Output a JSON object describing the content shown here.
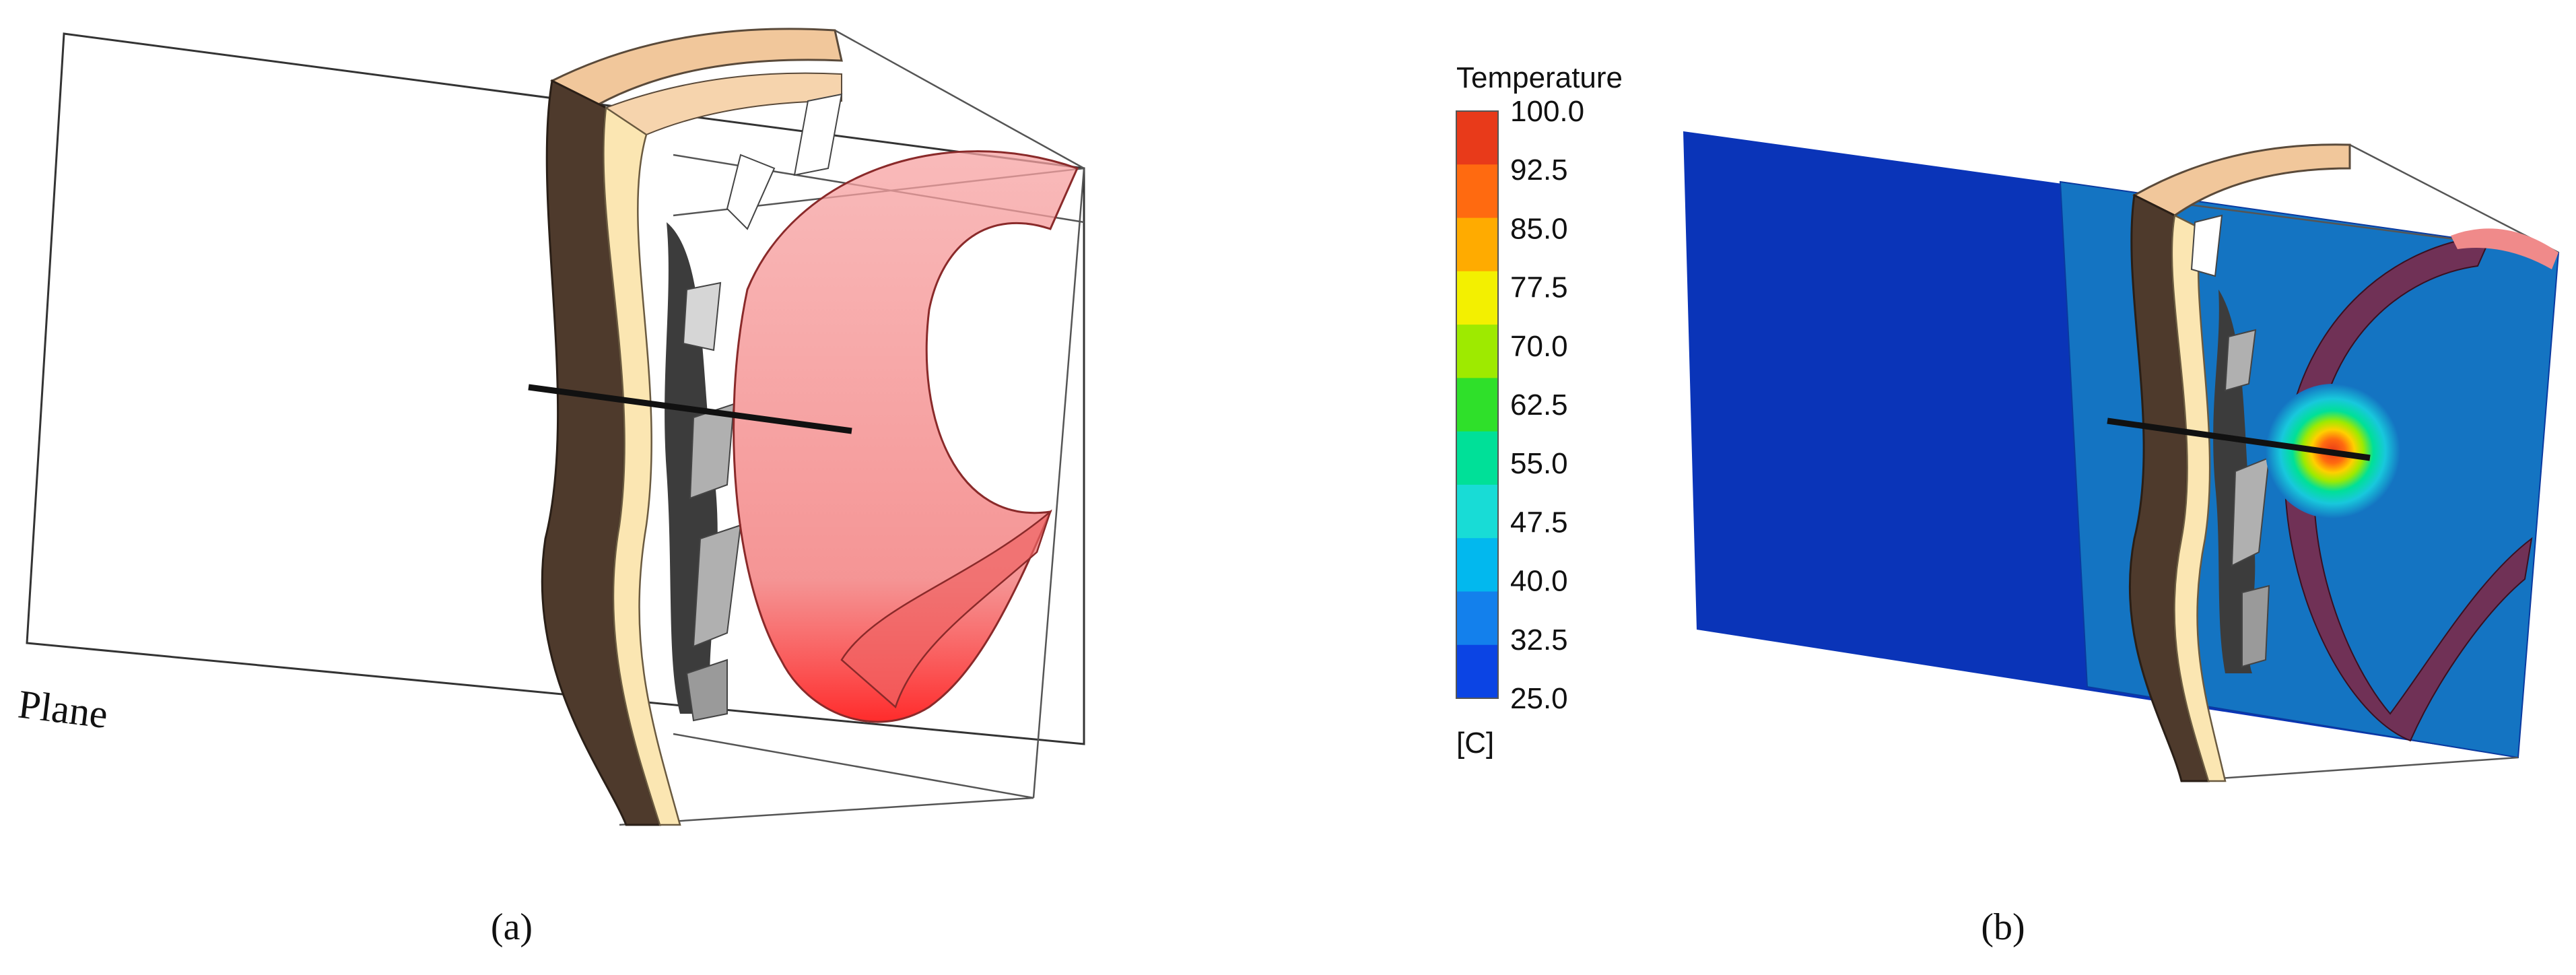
{
  "panel_a": {
    "plane_label": "Plane",
    "caption": "(a)"
  },
  "panel_b": {
    "caption": "(b)"
  },
  "colorbar": {
    "title": "Temperature",
    "unit": "[C]",
    "ticks": [
      "100.0",
      "92.5",
      "85.0",
      "77.5",
      "70.0",
      "62.5",
      "55.0",
      "47.5",
      "40.0",
      "32.5",
      "25.0"
    ],
    "colors": [
      "#e83a1a",
      "#ff6a10",
      "#ffab00",
      "#f3f000",
      "#9eea00",
      "#2fe02a",
      "#00e098",
      "#18dcd6",
      "#02b8ee",
      "#1380ec",
      "#0b44e4"
    ]
  },
  "colors": {
    "skin": "#4e3a2c",
    "fat": "#fbe6b2",
    "muscle": "#f1c79b",
    "bone": "#b0b0b0",
    "dark_tissue": "#3c3c3c",
    "ablation_red": "#f28c8c",
    "plane_field_cold": "#0a34b8",
    "plane_field_warm": "#1474c2"
  }
}
